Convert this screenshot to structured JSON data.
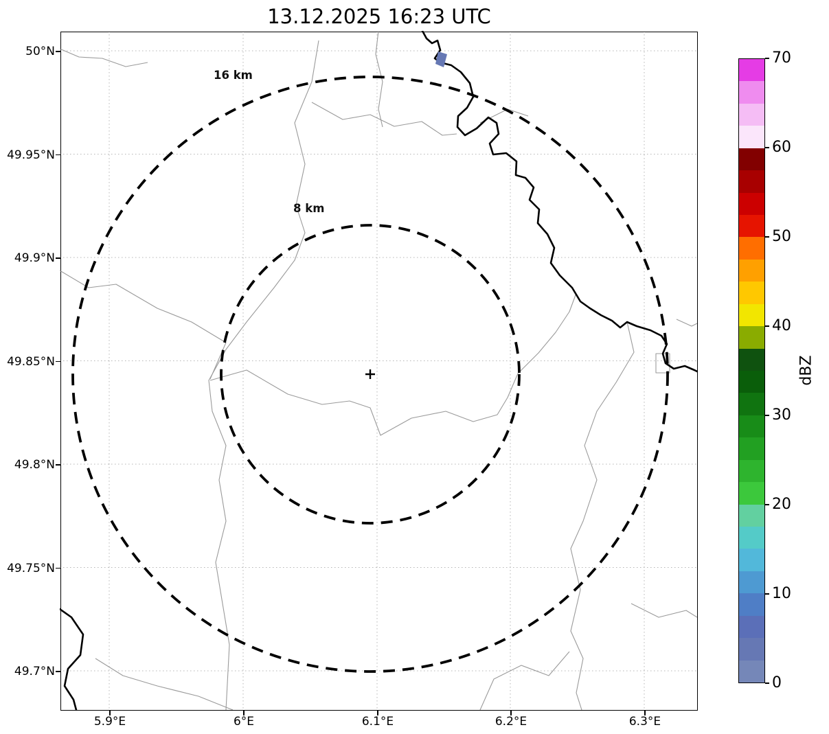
{
  "title": "13.12.2025 16:23 UTC",
  "map": {
    "y_tick_labels": [
      "50°N",
      "49.95°N",
      "49.9°N",
      "49.85°N",
      "49.8°N",
      "49.75°N",
      "49.7°N"
    ],
    "x_tick_labels": [
      "5.9°E",
      "6°E",
      "6.1°E",
      "6.2°E",
      "6.3°E"
    ],
    "range_rings": [
      {
        "label": "16 km"
      },
      {
        "label": "8 km"
      }
    ],
    "site_marker": "+"
  },
  "colorbar": {
    "label": "dBZ",
    "min": 0,
    "max": 70,
    "tick_labels_top_to_bottom": [
      "70",
      "60",
      "50",
      "40",
      "30",
      "20",
      "10",
      "0"
    ],
    "colors_bottom_to_top": [
      "#7587b8",
      "#6678b4",
      "#5b6fb8",
      "#4f7ec6",
      "#4e9ad2",
      "#52b8da",
      "#54cbc8",
      "#62d0a0",
      "#3cc83c",
      "#2eb42e",
      "#22a022",
      "#188c18",
      "#107410",
      "#0a5e0a",
      "#0f520f",
      "#8aac00",
      "#f2e600",
      "#ffc800",
      "#ffa000",
      "#ff6e00",
      "#e61400",
      "#cc0000",
      "#a80000",
      "#820000",
      "#fbe6fb",
      "#f5bdf5",
      "#ef8cef",
      "#e53ce5"
    ]
  },
  "chart_data": {
    "type": "heatmap",
    "title": "13.12.2025 16:23 UTC",
    "x_axis": {
      "tick_labels": [
        "5.9°E",
        "6°E",
        "6.1°E",
        "6.2°E",
        "6.3°E"
      ],
      "approx_range_deg_e": [
        5.86,
        6.35
      ]
    },
    "y_axis": {
      "tick_labels": [
        "50°N",
        "49.95°N",
        "49.9°N",
        "49.85°N",
        "49.8°N",
        "49.75°N",
        "49.7°N"
      ],
      "approx_range_deg_n": [
        49.68,
        50.01
      ]
    },
    "colorbar": {
      "label": "dBZ",
      "range": [
        0,
        70
      ],
      "tick_step": 10
    },
    "range_rings_km": [
      16,
      8
    ],
    "radar_site": {
      "approx_lon_deg_e": 6.09,
      "approx_lat_deg_n": 49.84,
      "marker": "+"
    },
    "echoes": [
      {
        "approx_lon_deg_e": 6.15,
        "approx_lat_deg_n": 49.99,
        "value_dbz": "0-7.5"
      }
    ],
    "grid": "dotted",
    "basemap": "thin administrative border lines and a bold river line"
  }
}
